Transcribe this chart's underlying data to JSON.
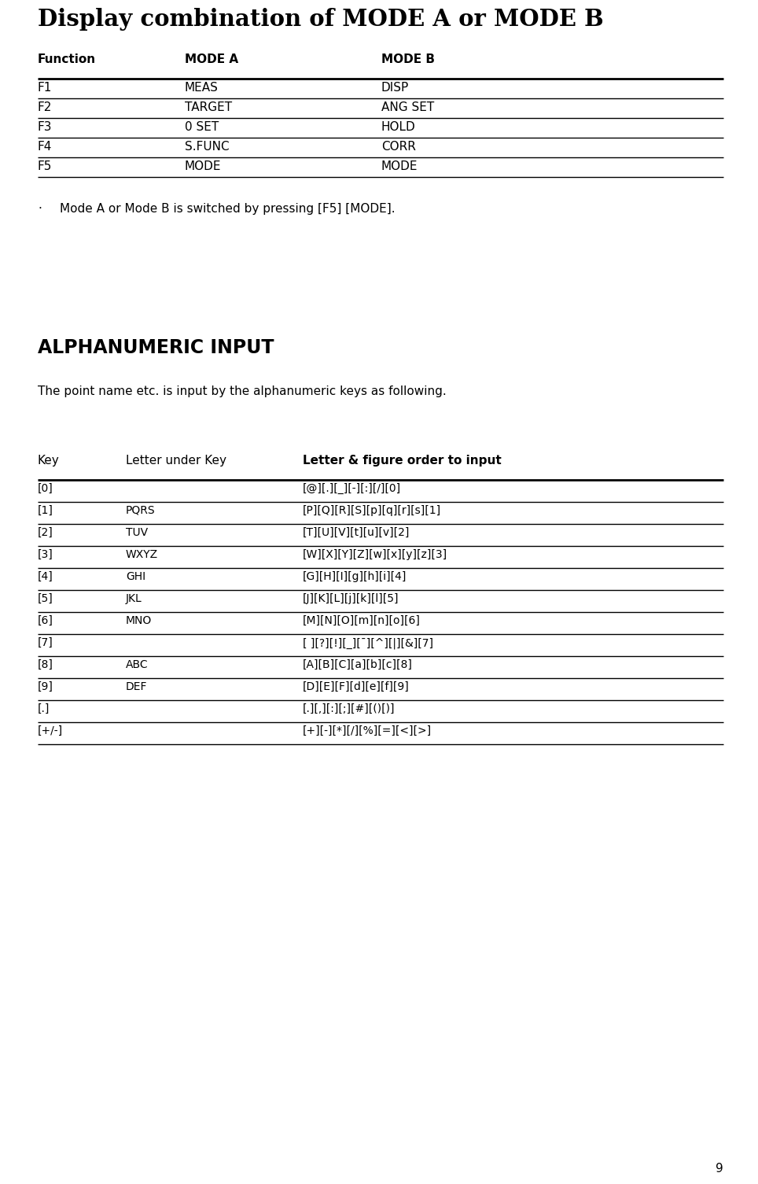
{
  "title": "Display combination of MODE A or MODE B",
  "table1_headers": [
    "Function",
    "MODE A",
    "MODE B"
  ],
  "table1_rows": [
    [
      "F1",
      "MEAS",
      "DISP"
    ],
    [
      "F2",
      "TARGET",
      "ANG SET"
    ],
    [
      "F3",
      "0 SET",
      "HOLD"
    ],
    [
      "F4",
      "S.FUNC",
      "CORR"
    ],
    [
      "F5",
      "MODE",
      "MODE"
    ]
  ],
  "bullet_char": "·",
  "bullet_text": "Mode A or Mode B is switched by pressing [F5] [MODE].",
  "section2_title": "ALPHANUMERIC INPUT",
  "section2_desc": "The point name etc. is input by the alphanumeric keys as following.",
  "table2_col0_header": "Key",
  "table2_col1_header": "Letter under Key",
  "table2_col2_header": "Letter & figure order to input",
  "table2_rows": [
    [
      "[0]",
      "",
      "[@][.][_][-][:][/][0]"
    ],
    [
      "[1]",
      "PQRS",
      "[P][Q][R][S][p][q][r][s][1]"
    ],
    [
      "[2]",
      "TUV",
      "[T][U][V][t][u][v][2]"
    ],
    [
      "[3]",
      "WXYZ",
      "[W][X][Y][Z][w][x][y][z][3]"
    ],
    [
      "[4]",
      "GHI",
      "[G][H][I][g][h][i][4]"
    ],
    [
      "[5]",
      "JKL",
      "[J][K][L][j][k][l][5]"
    ],
    [
      "[6]",
      "MNO",
      "[M][N][O][m][n][o][6]"
    ],
    [
      "[7]",
      "",
      "[ ][?][!][_][¯][^][|][&][7]"
    ],
    [
      "[8]",
      "ABC",
      "[A][B][C][a][b][c][8]"
    ],
    [
      "[9]",
      "DEF",
      "[D][E][F][d][e][f][9]"
    ],
    [
      "[.]",
      "",
      "[.][,][:][;][#][()[)]"
    ],
    [
      "[+/-]",
      "",
      "[+][-][*][/][%][=][<][>]"
    ]
  ],
  "page_number": "9",
  "bg_color": "#ffffff",
  "text_color": "#000000"
}
